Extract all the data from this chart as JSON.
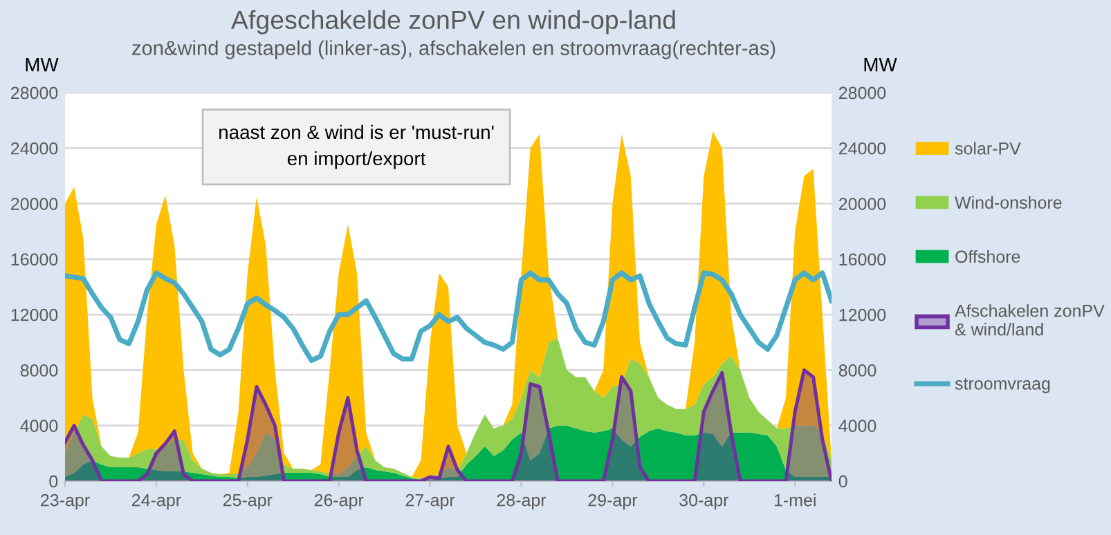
{
  "chart_data": {
    "type": "area",
    "title": "Afgeschakelde zonPV en wind-op-land",
    "subtitle": "zon&wind gestapeld (linker-as), afschakelen en stroomvraag(rechter-as)",
    "ylabel": "MW",
    "y2label": "MW",
    "annotations": [
      "naast zon & wind is er 'must-run'\nen import/export"
    ],
    "categories": [
      "23-apr",
      null,
      null,
      null,
      null,
      null,
      null,
      null,
      null,
      null,
      "24-apr",
      null,
      null,
      null,
      null,
      null,
      null,
      null,
      null,
      null,
      "25-apr",
      null,
      null,
      null,
      null,
      null,
      null,
      null,
      null,
      null,
      "26-apr",
      null,
      null,
      null,
      null,
      null,
      null,
      null,
      null,
      null,
      "27-apr",
      null,
      null,
      null,
      null,
      null,
      null,
      null,
      null,
      null,
      "28-apr",
      null,
      null,
      null,
      null,
      null,
      null,
      null,
      null,
      null,
      "29-apr",
      null,
      null,
      null,
      null,
      null,
      null,
      null,
      null,
      null,
      "30-apr",
      null,
      null,
      null,
      null,
      null,
      null,
      null,
      null,
      null,
      "1-mei",
      null,
      null,
      null,
      null
    ],
    "stacked": true,
    "series": [
      {
        "name": "Offshore",
        "color": "#00b050",
        "values": [
          300,
          600,
          1200,
          1500,
          1200,
          1000,
          1000,
          1000,
          1000,
          900,
          800,
          700,
          700,
          700,
          600,
          500,
          400,
          300,
          300,
          200,
          300,
          300,
          400,
          500,
          600,
          600,
          600,
          600,
          500,
          300,
          300,
          300,
          800,
          1000,
          800,
          700,
          600,
          400,
          200,
          100,
          100,
          200,
          300,
          300,
          1200,
          1800,
          2500,
          1800,
          2200,
          3000,
          3500,
          1500,
          2000,
          3800,
          4000,
          4000,
          3800,
          3600,
          3500,
          3600,
          3800,
          3000,
          2500,
          3200,
          3600,
          3800,
          3600,
          3500,
          3300,
          3300,
          3500,
          3400,
          2500,
          3500,
          3500,
          3500,
          3400,
          3300,
          2500,
          800,
          300,
          300,
          300,
          300,
          300
        ]
      },
      {
        "name": "Wind-onshore",
        "color": "#92d050",
        "values": [
          1700,
          2900,
          3600,
          3000,
          1300,
          800,
          700,
          700,
          1000,
          1400,
          1500,
          1800,
          2300,
          2300,
          900,
          400,
          200,
          200,
          200,
          300,
          700,
          1700,
          3100,
          2500,
          600,
          300,
          300,
          200,
          200,
          200,
          200,
          700,
          1000,
          1500,
          700,
          300,
          300,
          200,
          100,
          100,
          200,
          300,
          700,
          500,
          800,
          1700,
          2300,
          2000,
          1800,
          1500,
          2500,
          6500,
          5500,
          6200,
          6300,
          4000,
          3700,
          3900,
          3000,
          2400,
          3000,
          4000,
          6300,
          5300,
          3900,
          2200,
          1900,
          1700,
          1900,
          2200,
          3500,
          4100,
          6000,
          5500,
          4500,
          2500,
          1600,
          1100,
          1300,
          3000,
          3700,
          3700,
          3700,
          3200,
          1200
        ]
      },
      {
        "name": "solar-PV",
        "color": "#ffc000",
        "values": [
          18000,
          17700,
          12700,
          1500,
          0,
          0,
          0,
          0,
          1500,
          9700,
          16200,
          18100,
          14000,
          5000,
          500,
          0,
          0,
          0,
          100,
          4500,
          14000,
          18500,
          13500,
          5000,
          800,
          0,
          0,
          0,
          500,
          7500,
          14500,
          17500,
          13200,
          1000,
          0,
          0,
          0,
          0,
          0,
          1300,
          9700,
          14500,
          13000,
          3200,
          0,
          0,
          0,
          0,
          0,
          1000,
          9000,
          16000,
          17500,
          5000,
          0,
          0,
          0,
          0,
          0,
          2000,
          13200,
          18000,
          13200,
          1500,
          0,
          0,
          0,
          0,
          0,
          4500,
          15000,
          17700,
          15500,
          3000,
          0,
          0,
          0,
          0,
          0,
          2200,
          14000,
          18000,
          18500,
          8500,
          0
        ]
      },
      {
        "name": "Afschakelen zonPV\n& wind/land",
        "type": "line",
        "color": "#7030a0",
        "axis": "y2",
        "values": [
          2800,
          4000,
          2600,
          1500,
          0,
          0,
          0,
          0,
          0,
          500,
          2000,
          2700,
          3600,
          500,
          0,
          0,
          0,
          0,
          0,
          0,
          3000,
          6800,
          5500,
          4000,
          0,
          0,
          0,
          0,
          0,
          0,
          3500,
          6000,
          2200,
          0,
          0,
          0,
          0,
          0,
          0,
          0,
          300,
          200,
          2500,
          800,
          0,
          0,
          0,
          0,
          0,
          0,
          2000,
          7000,
          6800,
          3500,
          0,
          0,
          0,
          0,
          0,
          0,
          3000,
          7500,
          6500,
          1000,
          0,
          0,
          0,
          0,
          0,
          0,
          5000,
          6500,
          7800,
          3500,
          0,
          0,
          0,
          0,
          0,
          0,
          5000,
          8000,
          7500,
          3000,
          0
        ]
      },
      {
        "name": "stroomvraag",
        "type": "line",
        "color": "#4bacc6",
        "axis": "y2",
        "values": [
          14800,
          14700,
          14600,
          13500,
          12500,
          11800,
          10200,
          9900,
          11500,
          13800,
          15000,
          14600,
          14300,
          13500,
          12500,
          11500,
          9500,
          9100,
          9500,
          11000,
          12800,
          13200,
          12700,
          12300,
          11800,
          11000,
          9800,
          8700,
          9000,
          10800,
          12000,
          12000,
          12500,
          13000,
          11800,
          10500,
          9200,
          8800,
          8800,
          10800,
          11200,
          12000,
          11500,
          11800,
          11000,
          10500,
          10000,
          9800,
          9500,
          10000,
          14500,
          15000,
          14500,
          14500,
          13500,
          12800,
          11000,
          10000,
          9800,
          11500,
          14500,
          15000,
          14500,
          14800,
          12800,
          11500,
          10300,
          9900,
          9800,
          12500,
          15000,
          14900,
          14500,
          13500,
          12000,
          11000,
          10000,
          9500,
          10500,
          12500,
          14500,
          15000,
          14500,
          15000,
          13000
        ]
      }
    ],
    "ylim": [
      0,
      28000
    ],
    "yticks": [
      0,
      4000,
      8000,
      12000,
      16000,
      20000,
      24000,
      28000
    ],
    "y2lim": [
      0,
      28000
    ],
    "y2ticks": [
      0,
      4000,
      8000,
      12000,
      16000,
      20000,
      24000,
      28000
    ],
    "grid": "y",
    "legend": "right"
  }
}
